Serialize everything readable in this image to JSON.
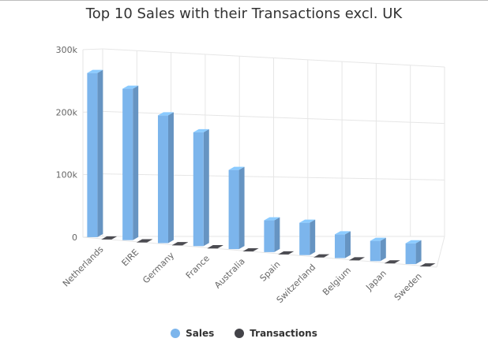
{
  "chart_data": {
    "type": "bar",
    "title": "Top 10 Sales with their Transactions excl. UK",
    "categories": [
      "Netherlands",
      "EIRE",
      "Germany",
      "France",
      "Australia",
      "Spain",
      "Switzerland",
      "Belgium",
      "Japan",
      "Sweden"
    ],
    "series": [
      {
        "name": "Sales",
        "values": [
          284000,
          262000,
          221000,
          197000,
          137000,
          55000,
          56000,
          41000,
          35000,
          36000
        ],
        "color": "#7cb5ec"
      },
      {
        "name": "Transactions",
        "values": [
          96,
          260,
          457,
          389,
          57,
          90,
          71,
          98,
          19,
          36
        ],
        "color": "#434348"
      }
    ],
    "y_ticks": [
      "0",
      "100k",
      "200k",
      "300k"
    ],
    "ylim": [
      0,
      300000
    ],
    "grid": true,
    "legend_position": "bottom-center",
    "style": "3d-column"
  }
}
